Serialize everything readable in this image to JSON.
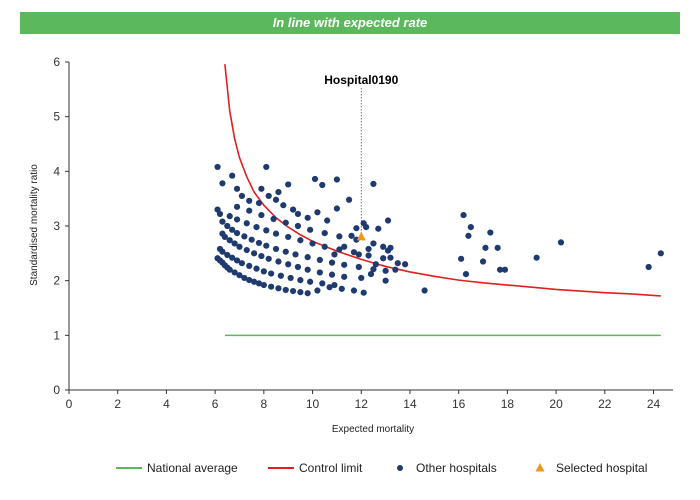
{
  "banner": {
    "text": "In line with expected rate",
    "color": "#5cb85c"
  },
  "chart_data": {
    "type": "scatter",
    "title": "",
    "xlabel": "Expected mortality",
    "ylabel": "Standardised mortality ratio",
    "xlim": [
      0,
      24.8
    ],
    "ylim": [
      0,
      6
    ],
    "xticks": [
      0,
      2,
      4,
      6,
      8,
      10,
      12,
      14,
      16,
      18,
      20,
      22,
      24
    ],
    "yticks": [
      0,
      1,
      2,
      3,
      4,
      5,
      6
    ],
    "grid": false,
    "legend_position": "bottom",
    "colors": {
      "national_average": "#5cb85c",
      "control_limit": "#e02020",
      "other_hospitals": "#1f3a6e",
      "selected_hospital": "#f0961e"
    },
    "series": [
      {
        "name": "National average",
        "kind": "line",
        "points": [
          [
            6.4,
            1.0
          ],
          [
            24.3,
            1.0
          ]
        ]
      },
      {
        "name": "Control limit",
        "kind": "line",
        "points": [
          [
            6.4,
            5.96
          ],
          [
            6.6,
            5.1
          ],
          [
            6.8,
            4.6
          ],
          [
            7.0,
            4.25
          ],
          [
            7.3,
            3.9
          ],
          [
            7.6,
            3.62
          ],
          [
            8.0,
            3.38
          ],
          [
            8.5,
            3.15
          ],
          [
            9.0,
            2.98
          ],
          [
            9.5,
            2.84
          ],
          [
            10.0,
            2.72
          ],
          [
            11.0,
            2.54
          ],
          [
            12.0,
            2.39
          ],
          [
            13.0,
            2.26
          ],
          [
            14.0,
            2.16
          ],
          [
            15.0,
            2.08
          ],
          [
            16.0,
            2.01
          ],
          [
            17.0,
            1.96
          ],
          [
            18.0,
            1.92
          ],
          [
            19.0,
            1.88
          ],
          [
            20.0,
            1.84
          ],
          [
            21.0,
            1.81
          ],
          [
            22.0,
            1.78
          ],
          [
            23.0,
            1.76
          ],
          [
            24.3,
            1.72
          ]
        ]
      },
      {
        "name": "Other hospitals",
        "kind": "scatter",
        "points": [
          [
            6.1,
            2.41
          ],
          [
            6.2,
            2.37
          ],
          [
            6.3,
            2.33
          ],
          [
            6.4,
            2.28
          ],
          [
            6.5,
            2.24
          ],
          [
            6.6,
            2.2
          ],
          [
            6.8,
            2.15
          ],
          [
            7.0,
            2.1
          ],
          [
            7.2,
            2.05
          ],
          [
            7.4,
            2.01
          ],
          [
            7.6,
            1.98
          ],
          [
            7.8,
            1.95
          ],
          [
            8.0,
            1.92
          ],
          [
            8.3,
            1.89
          ],
          [
            8.6,
            1.86
          ],
          [
            8.9,
            1.83
          ],
          [
            9.2,
            1.81
          ],
          [
            9.5,
            1.79
          ],
          [
            9.8,
            1.77
          ],
          [
            6.2,
            2.58
          ],
          [
            6.3,
            2.53
          ],
          [
            6.5,
            2.47
          ],
          [
            6.7,
            2.42
          ],
          [
            6.9,
            2.37
          ],
          [
            7.1,
            2.32
          ],
          [
            7.4,
            2.27
          ],
          [
            7.7,
            2.22
          ],
          [
            8.0,
            2.17
          ],
          [
            8.3,
            2.13
          ],
          [
            8.7,
            2.09
          ],
          [
            9.1,
            2.05
          ],
          [
            9.5,
            2.01
          ],
          [
            9.9,
            1.98
          ],
          [
            10.4,
            1.95
          ],
          [
            10.9,
            1.92
          ],
          [
            6.3,
            2.86
          ],
          [
            6.4,
            2.8
          ],
          [
            6.6,
            2.74
          ],
          [
            6.8,
            2.68
          ],
          [
            7.0,
            2.62
          ],
          [
            7.3,
            2.56
          ],
          [
            7.6,
            2.5
          ],
          [
            7.9,
            2.45
          ],
          [
            8.2,
            2.4
          ],
          [
            8.6,
            2.35
          ],
          [
            9.0,
            2.3
          ],
          [
            9.4,
            2.25
          ],
          [
            9.8,
            2.2
          ],
          [
            10.3,
            2.15
          ],
          [
            10.8,
            2.11
          ],
          [
            11.3,
            2.07
          ],
          [
            6.3,
            3.08
          ],
          [
            6.5,
            3.0
          ],
          [
            6.7,
            2.93
          ],
          [
            6.9,
            2.87
          ],
          [
            7.2,
            2.81
          ],
          [
            7.5,
            2.75
          ],
          [
            7.8,
            2.69
          ],
          [
            8.1,
            2.64
          ],
          [
            8.5,
            2.58
          ],
          [
            8.9,
            2.53
          ],
          [
            9.3,
            2.48
          ],
          [
            9.8,
            2.43
          ],
          [
            10.3,
            2.38
          ],
          [
            10.8,
            2.33
          ],
          [
            11.3,
            2.29
          ],
          [
            11.9,
            2.25
          ],
          [
            12.5,
            2.21
          ],
          [
            6.1,
            3.3
          ],
          [
            6.2,
            3.22
          ],
          [
            6.6,
            3.18
          ],
          [
            6.9,
            3.12
          ],
          [
            7.3,
            3.05
          ],
          [
            7.7,
            2.98
          ],
          [
            8.1,
            2.92
          ],
          [
            8.5,
            2.86
          ],
          [
            9.0,
            2.8
          ],
          [
            9.5,
            2.74
          ],
          [
            10.0,
            2.68
          ],
          [
            10.5,
            2.62
          ],
          [
            11.1,
            2.57
          ],
          [
            11.7,
            2.52
          ],
          [
            12.3,
            2.46
          ],
          [
            12.9,
            2.41
          ],
          [
            6.9,
            3.35
          ],
          [
            7.4,
            3.28
          ],
          [
            7.9,
            3.2
          ],
          [
            8.4,
            3.13
          ],
          [
            8.9,
            3.06
          ],
          [
            9.4,
            3.0
          ],
          [
            9.9,
            2.93
          ],
          [
            10.5,
            2.87
          ],
          [
            11.1,
            2.81
          ],
          [
            11.8,
            2.75
          ],
          [
            12.5,
            2.68
          ],
          [
            13.2,
            2.6
          ],
          [
            6.1,
            4.08
          ],
          [
            6.3,
            3.78
          ],
          [
            6.7,
            3.92
          ],
          [
            6.9,
            3.68
          ],
          [
            7.1,
            3.55
          ],
          [
            7.4,
            3.46
          ],
          [
            7.8,
            3.42
          ],
          [
            8.2,
            3.55
          ],
          [
            8.5,
            3.48
          ],
          [
            8.8,
            3.38
          ],
          [
            9.2,
            3.3
          ],
          [
            9.4,
            3.22
          ],
          [
            9.8,
            3.15
          ],
          [
            10.2,
            3.25
          ],
          [
            10.6,
            3.1
          ],
          [
            11.0,
            3.32
          ],
          [
            11.5,
            3.48
          ],
          [
            12.1,
            3.05
          ],
          [
            7.9,
            3.68
          ],
          [
            8.1,
            4.08
          ],
          [
            8.6,
            3.62
          ],
          [
            9.0,
            3.76
          ],
          [
            10.1,
            3.86
          ],
          [
            10.4,
            3.75
          ],
          [
            11.0,
            3.85
          ],
          [
            12.5,
            3.77
          ],
          [
            11.6,
            2.82
          ],
          [
            11.3,
            2.62
          ],
          [
            10.9,
            2.48
          ],
          [
            11.9,
            2.48
          ],
          [
            12.3,
            2.58
          ],
          [
            12.9,
            2.62
          ],
          [
            13.1,
            2.55
          ],
          [
            12.6,
            2.3
          ],
          [
            13.0,
            2.18
          ],
          [
            13.2,
            2.42
          ],
          [
            13.5,
            2.32
          ],
          [
            13.4,
            2.2
          ],
          [
            12.4,
            2.12
          ],
          [
            12.0,
            2.05
          ],
          [
            11.2,
            1.85
          ],
          [
            10.7,
            1.88
          ],
          [
            10.2,
            1.82
          ],
          [
            11.7,
            1.82
          ],
          [
            12.1,
            1.78
          ],
          [
            13.0,
            2.0
          ],
          [
            13.8,
            2.3
          ],
          [
            13.1,
            3.1
          ],
          [
            12.7,
            2.95
          ],
          [
            11.8,
            2.96
          ],
          [
            12.2,
            2.98
          ],
          [
            14.6,
            1.82
          ],
          [
            16.2,
            3.2
          ],
          [
            16.5,
            2.98
          ],
          [
            16.4,
            2.82
          ],
          [
            16.1,
            2.4
          ],
          [
            16.3,
            2.12
          ],
          [
            17.0,
            2.35
          ],
          [
            17.1,
            2.6
          ],
          [
            17.3,
            2.88
          ],
          [
            17.6,
            2.6
          ],
          [
            17.7,
            2.2
          ],
          [
            17.9,
            2.2
          ],
          [
            19.2,
            2.42
          ],
          [
            20.2,
            2.7
          ],
          [
            23.8,
            2.25
          ],
          [
            24.3,
            2.5
          ]
        ]
      },
      {
        "name": "Selected hospital",
        "kind": "scatter",
        "points": [
          [
            12.0,
            2.8
          ]
        ]
      }
    ],
    "annotations": [
      {
        "text": "Hospital0190",
        "x": 12.0,
        "y": 2.8
      }
    ]
  }
}
